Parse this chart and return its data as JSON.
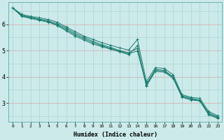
{
  "xlabel": "Humidex (Indice chaleur)",
  "bg_color": "#cceaea",
  "line_color": "#1a7a6e",
  "xlim": [
    -0.5,
    23.5
  ],
  "ylim": [
    2.3,
    6.85
  ],
  "xticks": [
    0,
    1,
    2,
    3,
    4,
    5,
    6,
    7,
    8,
    9,
    10,
    11,
    12,
    13,
    14,
    15,
    16,
    17,
    18,
    19,
    20,
    21,
    22,
    23
  ],
  "yticks": [
    3,
    4,
    5,
    6
  ],
  "series": [
    [
      6.62,
      6.38,
      6.3,
      6.25,
      6.18,
      6.08,
      5.9,
      5.72,
      5.55,
      5.42,
      5.3,
      5.2,
      5.1,
      5.02,
      5.42,
      3.82,
      4.35,
      4.32,
      4.08,
      3.32,
      3.22,
      3.18,
      2.68,
      2.52
    ],
    [
      6.62,
      6.34,
      6.27,
      6.2,
      6.13,
      6.02,
      5.85,
      5.65,
      5.5,
      5.35,
      5.22,
      5.12,
      5.0,
      4.92,
      5.08,
      3.72,
      4.28,
      4.25,
      4.0,
      3.28,
      3.18,
      3.12,
      2.62,
      2.48
    ],
    [
      6.62,
      6.32,
      6.25,
      6.18,
      6.1,
      5.98,
      5.8,
      5.6,
      5.45,
      5.3,
      5.18,
      5.08,
      4.98,
      4.88,
      4.98,
      3.68,
      4.25,
      4.22,
      3.98,
      3.25,
      3.15,
      3.1,
      2.58,
      2.45
    ],
    [
      6.62,
      6.3,
      6.22,
      6.15,
      6.08,
      5.95,
      5.75,
      5.55,
      5.4,
      5.25,
      5.15,
      5.05,
      4.95,
      4.85,
      5.18,
      3.65,
      4.2,
      4.18,
      3.95,
      3.22,
      3.12,
      3.08,
      2.55,
      2.42
    ]
  ],
  "grid_teal": "#aad4d4",
  "grid_pink": "#d4a8a8"
}
